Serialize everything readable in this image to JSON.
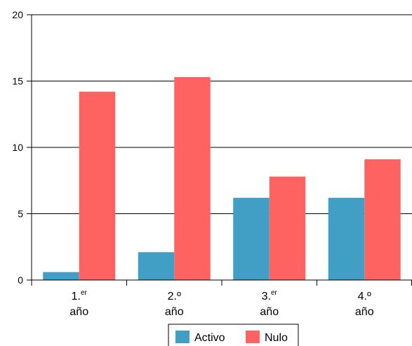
{
  "chart_data": {
    "type": "bar",
    "categories": [
      {
        "main": "1.",
        "sup": "er",
        "line2": "año"
      },
      {
        "main": "2.º",
        "sup": "",
        "line2": "año"
      },
      {
        "main": "3.",
        "sup": "er",
        "line2": "año"
      },
      {
        "main": "4.º",
        "sup": "",
        "line2": "año"
      }
    ],
    "series": [
      {
        "name": "Activo",
        "color": "#419ec4",
        "values": [
          0.6,
          2.1,
          6.2,
          6.2
        ]
      },
      {
        "name": "Nulo",
        "color": "#ff6361",
        "values": [
          14.2,
          15.3,
          7.8,
          9.1
        ]
      }
    ],
    "ylim": [
      0,
      20
    ],
    "yticks": [
      "0",
      "5",
      "10",
      "15",
      "20"
    ],
    "ytick_values": [
      0,
      5,
      10,
      15,
      20
    ],
    "grid": true,
    "legend_position": "bottom-center",
    "title": "",
    "xlabel": "",
    "ylabel": ""
  }
}
